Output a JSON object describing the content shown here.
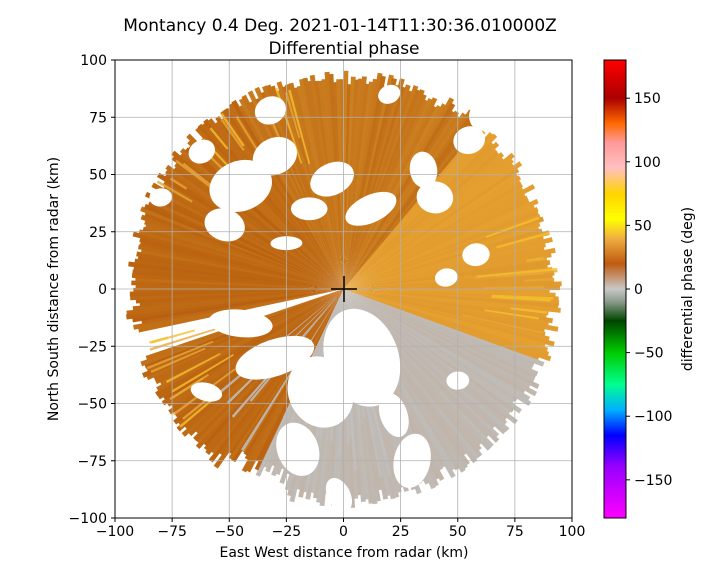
{
  "chart_data": {
    "type": "heatmap",
    "title": "Montancy 0.4 Deg. 2021-01-14T11:30:36.010000Z",
    "subtitle": "Differential phase",
    "xlabel": "East West distance from radar (km)",
    "ylabel": "North South distance from radar (km)",
    "xlim": [
      -100,
      100
    ],
    "ylim": [
      -100,
      100
    ],
    "x_ticks": [
      -100,
      -75,
      -50,
      -25,
      0,
      25,
      50,
      75,
      100
    ],
    "y_ticks": [
      -100,
      -75,
      -50,
      -25,
      0,
      25,
      50,
      75,
      100
    ],
    "x_tick_labels": [
      "−100",
      "−75",
      "−50",
      "−25",
      "0",
      "25",
      "50",
      "75",
      "100"
    ],
    "y_tick_labels": [
      "−100",
      "−75",
      "−50",
      "−25",
      "0",
      "25",
      "50",
      "75",
      "100"
    ],
    "grid": true,
    "radar_range_km": 96,
    "radar_location": [
      0,
      0
    ],
    "colorbar": {
      "label": "differential phase (deg)",
      "range": [
        -180,
        180
      ],
      "ticks": [
        150,
        100,
        50,
        0,
        -50,
        -100,
        -150
      ],
      "tick_labels": [
        "150",
        "100",
        "50",
        "0",
        "−50",
        "−100",
        "−150"
      ],
      "colors": [
        {
          "value": 180,
          "color": "#ff0000"
        },
        {
          "value": 150,
          "color": "#aa0000"
        },
        {
          "value": 130,
          "color": "#ff6a00"
        },
        {
          "value": 115,
          "color": "#ff9a9a"
        },
        {
          "value": 95,
          "color": "#ffc0c0"
        },
        {
          "value": 75,
          "color": "#ffd400"
        },
        {
          "value": 55,
          "color": "#ffff00"
        },
        {
          "value": 40,
          "color": "#f0b040"
        },
        {
          "value": 20,
          "color": "#bf5a10"
        },
        {
          "value": 0,
          "color": "#c8c8c8"
        },
        {
          "value": -10,
          "color": "#8a9a8a"
        },
        {
          "value": -25,
          "color": "#004400"
        },
        {
          "value": -50,
          "color": "#00cc00"
        },
        {
          "value": -75,
          "color": "#00ff90"
        },
        {
          "value": -95,
          "color": "#00b0ff"
        },
        {
          "value": -115,
          "color": "#0000ff"
        },
        {
          "value": -140,
          "color": "#9900ff"
        },
        {
          "value": -180,
          "color": "#ff00ff"
        }
      ]
    },
    "colors": {
      "background": "#ffffff",
      "main_field": "#b8600f",
      "north_field": "#d6902a",
      "east_field": "#e6a030",
      "southeast_field": "#bfbcb8",
      "grid": "#b0b0b0"
    }
  }
}
